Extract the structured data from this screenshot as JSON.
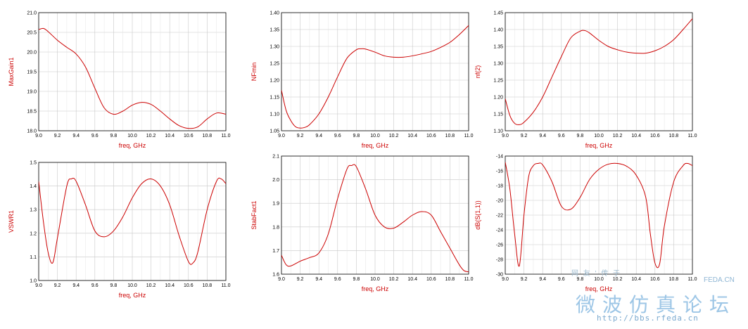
{
  "colors": {
    "curve": "#cc0000",
    "label": "#cc0000",
    "grid": "#c8c8c8",
    "frame": "#000000"
  },
  "watermark": {
    "site": "网 友 ' 传 于",
    "feda": "FEDA.CN",
    "forum": "微波仿真论坛",
    "url": "http://bbs.rfeda.cn"
  },
  "chart_data": [
    {
      "type": "line",
      "title": "",
      "xlabel": "freq, GHz",
      "ylabel": "MaxGain1",
      "xlim": [
        9.0,
        11.0
      ],
      "ylim": [
        18.0,
        21.0
      ],
      "xticks": [
        "9.0",
        "9.2",
        "9.4",
        "9.6",
        "9.8",
        "10.0",
        "10.2",
        "10.4",
        "10.6",
        "10.8",
        "11.0"
      ],
      "yticks": [
        "18.0",
        "18.5",
        "19.0",
        "19.5",
        "20.0",
        "20.5",
        "21.0"
      ],
      "grid": true,
      "x": [
        9.0,
        9.05,
        9.1,
        9.2,
        9.3,
        9.4,
        9.5,
        9.6,
        9.7,
        9.8,
        9.9,
        10.0,
        10.1,
        10.2,
        10.3,
        10.4,
        10.5,
        10.6,
        10.7,
        10.8,
        10.9,
        11.0
      ],
      "y": [
        20.57,
        20.6,
        20.52,
        20.3,
        20.12,
        19.95,
        19.62,
        19.08,
        18.58,
        18.42,
        18.5,
        18.65,
        18.72,
        18.67,
        18.5,
        18.3,
        18.13,
        18.06,
        18.1,
        18.3,
        18.45,
        18.42
      ]
    },
    {
      "type": "line",
      "title": "",
      "xlabel": "freq, GHz",
      "ylabel": "NFmin",
      "xlim": [
        9.0,
        11.0
      ],
      "ylim": [
        1.05,
        1.4
      ],
      "xticks": [
        "9.0",
        "9.2",
        "9.4",
        "9.6",
        "9.8",
        "10.0",
        "10.2",
        "10.4",
        "10.6",
        "10.8",
        "11.0"
      ],
      "yticks": [
        "1.05",
        "1.10",
        "1.15",
        "1.20",
        "1.25",
        "1.30",
        "1.35",
        "1.40"
      ],
      "grid": true,
      "x": [
        9.0,
        9.05,
        9.1,
        9.15,
        9.2,
        9.25,
        9.3,
        9.4,
        9.5,
        9.6,
        9.7,
        9.8,
        9.85,
        9.9,
        10.0,
        10.1,
        10.2,
        10.3,
        10.4,
        10.5,
        10.6,
        10.7,
        10.8,
        10.9,
        11.0
      ],
      "y": [
        1.17,
        1.11,
        1.08,
        1.062,
        1.058,
        1.06,
        1.068,
        1.1,
        1.15,
        1.21,
        1.265,
        1.29,
        1.293,
        1.292,
        1.283,
        1.272,
        1.268,
        1.268,
        1.272,
        1.278,
        1.285,
        1.297,
        1.312,
        1.335,
        1.362
      ]
    },
    {
      "type": "line",
      "title": "",
      "xlabel": "freq, GHz",
      "ylabel": "nf(2)",
      "xlim": [
        9.0,
        11.0
      ],
      "ylim": [
        1.1,
        1.45
      ],
      "xticks": [
        "9.0",
        "9.2",
        "9.4",
        "9.6",
        "9.8",
        "10.0",
        "10.2",
        "10.4",
        "10.6",
        "10.8",
        "11.0"
      ],
      "yticks": [
        "1.10",
        "1.15",
        "1.20",
        "1.25",
        "1.30",
        "1.35",
        "1.40",
        "1.45"
      ],
      "grid": true,
      "x": [
        9.0,
        9.05,
        9.1,
        9.15,
        9.2,
        9.3,
        9.4,
        9.5,
        9.6,
        9.7,
        9.8,
        9.85,
        9.9,
        10.0,
        10.1,
        10.2,
        10.3,
        10.4,
        10.5,
        10.6,
        10.7,
        10.8,
        10.9,
        11.0
      ],
      "y": [
        1.195,
        1.145,
        1.122,
        1.118,
        1.125,
        1.155,
        1.2,
        1.26,
        1.32,
        1.375,
        1.395,
        1.397,
        1.39,
        1.368,
        1.35,
        1.34,
        1.333,
        1.33,
        1.33,
        1.337,
        1.35,
        1.37,
        1.4,
        1.432
      ]
    },
    {
      "type": "line",
      "title": "",
      "xlabel": "freq, GHz",
      "ylabel": "VSWR1",
      "xlim": [
        9.0,
        11.0
      ],
      "ylim": [
        1.0,
        1.5
      ],
      "xticks": [
        "9.0",
        "9.2",
        "9.4",
        "9.6",
        "9.8",
        "10.0",
        "10.2",
        "10.4",
        "10.6",
        "10.8",
        "11.0"
      ],
      "yticks": [
        "1.0",
        "1.1",
        "1.2",
        "1.3",
        "1.4",
        "1.5"
      ],
      "grid": true,
      "x": [
        9.0,
        9.05,
        9.1,
        9.15,
        9.2,
        9.3,
        9.35,
        9.4,
        9.5,
        9.6,
        9.7,
        9.8,
        9.9,
        10.0,
        10.1,
        10.2,
        10.3,
        10.4,
        10.5,
        10.6,
        10.65,
        10.7,
        10.8,
        10.9,
        10.95,
        11.0
      ],
      "y": [
        1.42,
        1.25,
        1.12,
        1.075,
        1.18,
        1.4,
        1.43,
        1.42,
        1.32,
        1.21,
        1.185,
        1.21,
        1.27,
        1.35,
        1.41,
        1.43,
        1.4,
        1.32,
        1.19,
        1.08,
        1.075,
        1.12,
        1.3,
        1.42,
        1.43,
        1.41
      ]
    },
    {
      "type": "line",
      "title": "",
      "xlabel": "freq, GHz",
      "ylabel": "StabFact1",
      "xlim": [
        9.0,
        11.0
      ],
      "ylim": [
        1.6,
        2.1
      ],
      "xticks": [
        "9.0",
        "9.2",
        "9.4",
        "9.6",
        "9.8",
        "10.0",
        "10.2",
        "10.4",
        "10.6",
        "10.8",
        "11.0"
      ],
      "yticks": [
        "1.6",
        "1.7",
        "1.8",
        "1.9",
        "2.0",
        "2.1"
      ],
      "grid": true,
      "x": [
        9.0,
        9.05,
        9.1,
        9.2,
        9.3,
        9.4,
        9.5,
        9.6,
        9.7,
        9.75,
        9.8,
        9.9,
        10.0,
        10.1,
        10.2,
        10.3,
        10.4,
        10.5,
        10.6,
        10.7,
        10.8,
        10.9,
        10.95,
        11.0
      ],
      "y": [
        1.68,
        1.64,
        1.635,
        1.655,
        1.67,
        1.69,
        1.77,
        1.92,
        2.045,
        2.06,
        2.055,
        1.96,
        1.85,
        1.8,
        1.795,
        1.82,
        1.85,
        1.865,
        1.85,
        1.78,
        1.71,
        1.64,
        1.615,
        1.61
      ]
    },
    {
      "type": "line",
      "title": "",
      "xlabel": "freq, GHz",
      "ylabel": "dB(S(1,1))",
      "xlim": [
        9.0,
        11.0
      ],
      "ylim": [
        -30,
        -14
      ],
      "xticks": [
        "9.0",
        "9.2",
        "9.4",
        "9.6",
        "9.8",
        "10.0",
        "10.2",
        "10.4",
        "10.6",
        "10.8",
        "11.0"
      ],
      "yticks": [
        "-30",
        "-28",
        "-26",
        "-24",
        "-22",
        "-20",
        "-18",
        "-16",
        "-14"
      ],
      "grid": true,
      "x": [
        9.0,
        9.05,
        9.1,
        9.15,
        9.2,
        9.25,
        9.3,
        9.35,
        9.4,
        9.5,
        9.6,
        9.7,
        9.8,
        9.9,
        10.0,
        10.1,
        10.2,
        10.3,
        10.4,
        10.5,
        10.55,
        10.6,
        10.65,
        10.7,
        10.8,
        10.9,
        10.95,
        11.0
      ],
      "y": [
        -14.8,
        -18.5,
        -24.5,
        -28.9,
        -22.0,
        -16.8,
        -15.3,
        -15.0,
        -15.2,
        -17.5,
        -20.8,
        -21.2,
        -19.6,
        -17.2,
        -15.8,
        -15.1,
        -15.0,
        -15.4,
        -16.6,
        -19.5,
        -24.5,
        -28.5,
        -28.6,
        -23.5,
        -17.5,
        -15.3,
        -15.0,
        -15.3
      ]
    }
  ]
}
